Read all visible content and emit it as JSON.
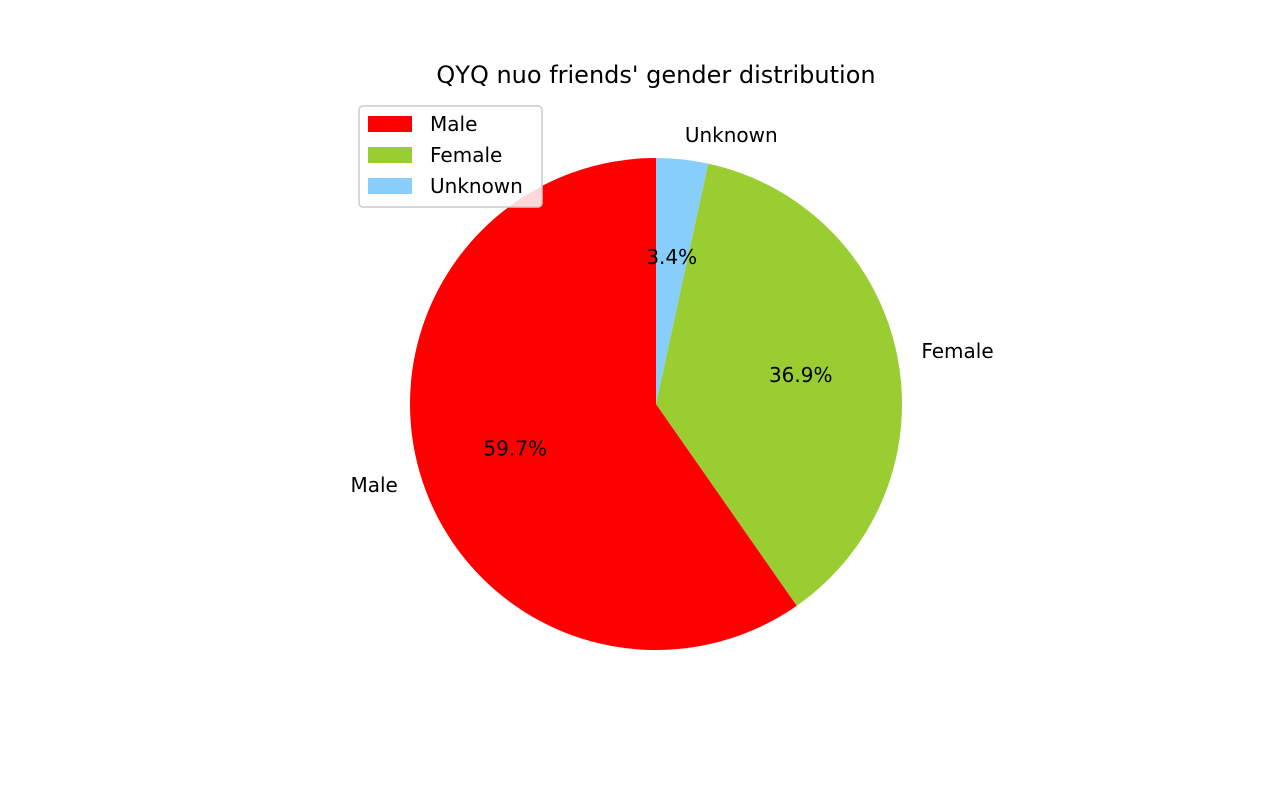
{
  "chart_data": {
    "type": "pie",
    "title": "QYQ nuo friends' gender distribution",
    "slices": [
      {
        "label": "Male",
        "value": 59.7,
        "pct_label": "59.7%",
        "color": "#ff0000"
      },
      {
        "label": "Female",
        "value": 36.9,
        "pct_label": "36.9%",
        "color": "#9acd32"
      },
      {
        "label": "Unknown",
        "value": 3.4,
        "pct_label": "3.4%",
        "color": "#87cefa"
      }
    ],
    "start_angle_deg": 90,
    "direction": "counterclockwise",
    "legend": {
      "placement": "upper-left",
      "entries": [
        "Male",
        "Female",
        "Unknown"
      ]
    }
  }
}
